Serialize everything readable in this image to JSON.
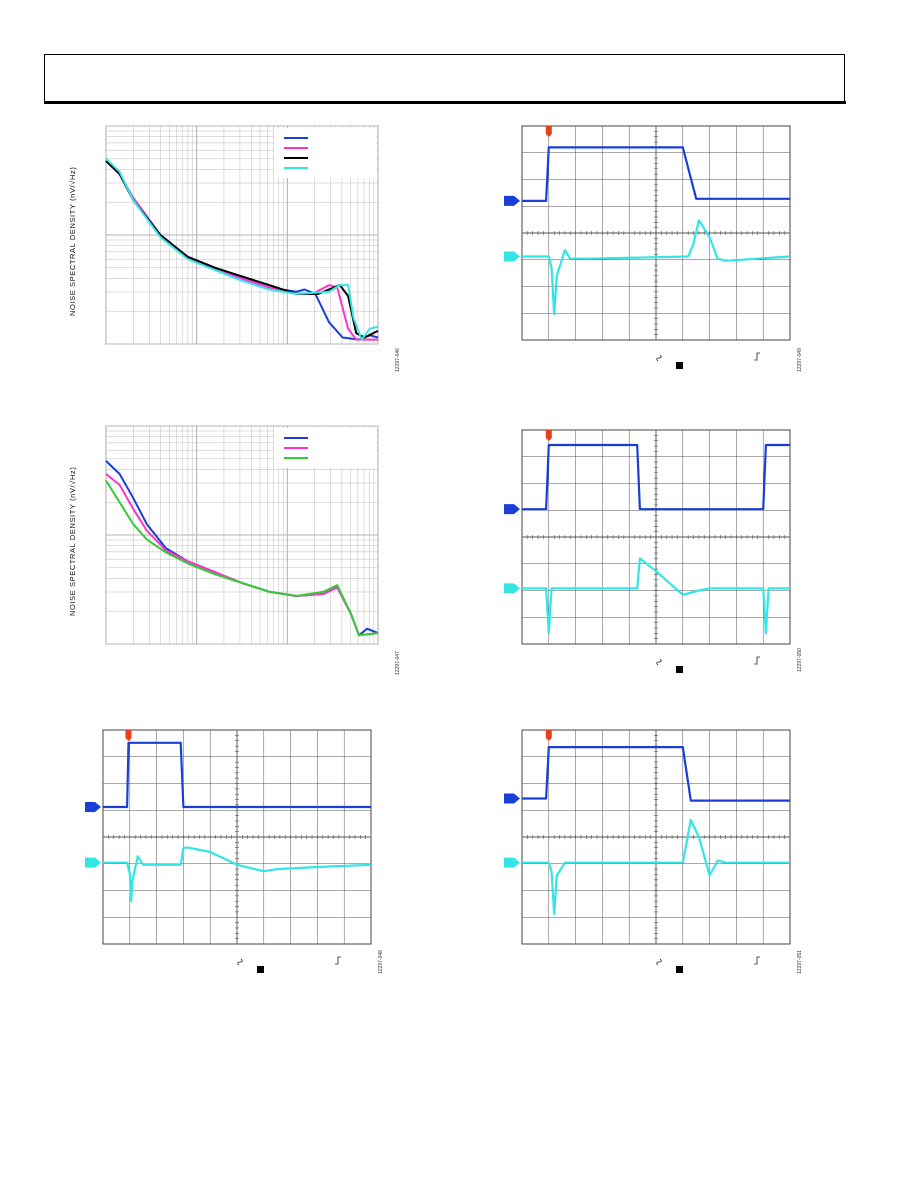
{
  "header": {
    "text": ""
  },
  "colors": {
    "blue": "#1a3fd6",
    "magenta": "#ff33cc",
    "black": "#000000",
    "cyan": "#33e5e5",
    "green": "#33cc33",
    "trigger": "#e8401c",
    "grid": "#b5b5b5",
    "scope_grid": "#555555"
  },
  "figures": [
    {
      "id": "noise1",
      "type": "noise",
      "ylabel": "NOISE SPECTRAL DENSITY (nV/√Hz)",
      "fig_id": "12297-046",
      "legend_colors": [
        "#1a3fd6",
        "#ff33cc",
        "#000000",
        "#33e5e5"
      ]
    },
    {
      "id": "noise2",
      "type": "noise",
      "ylabel": "NOISE SPECTRAL DENSITY (nV/√Hz)",
      "fig_id": "12297-047",
      "legend_colors": [
        "#1a3fd6",
        "#ff33cc",
        "#33cc33"
      ]
    },
    {
      "id": "scope1",
      "type": "scope",
      "fig_id": "12297-048"
    },
    {
      "id": "scope2",
      "type": "scope",
      "fig_id": "12297-049"
    },
    {
      "id": "scope3",
      "type": "scope",
      "fig_id": "12297-050"
    },
    {
      "id": "scope4",
      "type": "scope",
      "fig_id": "12297-051"
    }
  ],
  "chart_data": [
    {
      "type": "line",
      "title": "",
      "xlabel": "",
      "ylabel": "NOISE SPECTRAL DENSITY (nV/√Hz)",
      "log_x": true,
      "log_y": true,
      "grid": true,
      "legend_placement": "top-right",
      "series": [
        {
          "color": "#1a3fd6",
          "points": [
            [
              0,
              0.16
            ],
            [
              0.05,
              0.22
            ],
            [
              0.1,
              0.33
            ],
            [
              0.2,
              0.5
            ],
            [
              0.3,
              0.6
            ],
            [
              0.4,
              0.65
            ],
            [
              0.5,
              0.7
            ],
            [
              0.6,
              0.74
            ],
            [
              0.7,
              0.76
            ],
            [
              0.73,
              0.75
            ],
            [
              0.77,
              0.77
            ],
            [
              0.82,
              0.9
            ],
            [
              0.87,
              0.97
            ],
            [
              0.93,
              0.98
            ],
            [
              0.97,
              0.96
            ],
            [
              1,
              0.97
            ]
          ]
        },
        {
          "color": "#ff33cc",
          "points": [
            [
              0,
              0.16
            ],
            [
              0.05,
              0.22
            ],
            [
              0.1,
              0.33
            ],
            [
              0.2,
              0.5
            ],
            [
              0.3,
              0.6
            ],
            [
              0.4,
              0.65
            ],
            [
              0.5,
              0.7
            ],
            [
              0.6,
              0.74
            ],
            [
              0.7,
              0.77
            ],
            [
              0.76,
              0.77
            ],
            [
              0.82,
              0.73
            ],
            [
              0.85,
              0.74
            ],
            [
              0.89,
              0.93
            ],
            [
              0.92,
              0.98
            ],
            [
              1,
              0.98
            ]
          ]
        },
        {
          "color": "#000000",
          "points": [
            [
              0,
              0.16
            ],
            [
              0.05,
              0.22
            ],
            [
              0.1,
              0.34
            ],
            [
              0.2,
              0.5
            ],
            [
              0.3,
              0.6
            ],
            [
              0.4,
              0.65
            ],
            [
              0.5,
              0.69
            ],
            [
              0.6,
              0.73
            ],
            [
              0.7,
              0.77
            ],
            [
              0.78,
              0.77
            ],
            [
              0.86,
              0.73
            ],
            [
              0.89,
              0.78
            ],
            [
              0.92,
              0.95
            ],
            [
              0.95,
              0.97
            ],
            [
              1,
              0.94
            ]
          ]
        },
        {
          "color": "#33e5e5",
          "points": [
            [
              0,
              0.15
            ],
            [
              0.05,
              0.21
            ],
            [
              0.1,
              0.34
            ],
            [
              0.2,
              0.51
            ],
            [
              0.3,
              0.61
            ],
            [
              0.4,
              0.66
            ],
            [
              0.5,
              0.71
            ],
            [
              0.6,
              0.75
            ],
            [
              0.7,
              0.77
            ],
            [
              0.82,
              0.76
            ],
            [
              0.86,
              0.73
            ],
            [
              0.89,
              0.73
            ],
            [
              0.91,
              0.88
            ],
            [
              0.94,
              0.98
            ],
            [
              0.97,
              0.93
            ],
            [
              1,
              0.92
            ]
          ]
        }
      ]
    },
    {
      "type": "line",
      "title": "",
      "xlabel": "",
      "ylabel": "NOISE SPECTRAL DENSITY (nV/√Hz)",
      "log_x": true,
      "log_y": true,
      "grid": true,
      "legend_placement": "top-right",
      "series": [
        {
          "color": "#1a3fd6",
          "points": [
            [
              0,
              0.16
            ],
            [
              0.05,
              0.22
            ],
            [
              0.1,
              0.33
            ],
            [
              0.15,
              0.45
            ],
            [
              0.22,
              0.56
            ],
            [
              0.3,
              0.62
            ],
            [
              0.4,
              0.67
            ],
            [
              0.5,
              0.72
            ],
            [
              0.6,
              0.76
            ],
            [
              0.7,
              0.78
            ],
            [
              0.8,
              0.77
            ],
            [
              0.85,
              0.74
            ],
            [
              0.9,
              0.86
            ],
            [
              0.93,
              0.96
            ],
            [
              0.96,
              0.93
            ],
            [
              1,
              0.95
            ]
          ]
        },
        {
          "color": "#ff33cc",
          "points": [
            [
              0,
              0.22
            ],
            [
              0.05,
              0.27
            ],
            [
              0.1,
              0.38
            ],
            [
              0.15,
              0.48
            ],
            [
              0.22,
              0.57
            ],
            [
              0.3,
              0.62
            ],
            [
              0.4,
              0.67
            ],
            [
              0.5,
              0.72
            ],
            [
              0.6,
              0.76
            ],
            [
              0.7,
              0.78
            ],
            [
              0.8,
              0.77
            ],
            [
              0.85,
              0.74
            ],
            [
              0.9,
              0.86
            ],
            [
              0.93,
              0.96
            ],
            [
              1,
              0.95
            ]
          ]
        },
        {
          "color": "#33cc33",
          "points": [
            [
              0,
              0.25
            ],
            [
              0.05,
              0.35
            ],
            [
              0.1,
              0.45
            ],
            [
              0.15,
              0.52
            ],
            [
              0.22,
              0.58
            ],
            [
              0.3,
              0.63
            ],
            [
              0.4,
              0.68
            ],
            [
              0.5,
              0.72
            ],
            [
              0.6,
              0.76
            ],
            [
              0.7,
              0.78
            ],
            [
              0.8,
              0.76
            ],
            [
              0.85,
              0.73
            ],
            [
              0.9,
              0.86
            ],
            [
              0.93,
              0.96
            ],
            [
              1,
              0.95
            ]
          ]
        }
      ]
    },
    {
      "type": "line",
      "title": "",
      "xlabel": "",
      "ylabel": "",
      "grid": true,
      "legend_placement": "none",
      "series": [
        {
          "color": "#1a3fd6",
          "points": [
            [
              0,
              0.36
            ],
            [
              0.09,
              0.36
            ],
            [
              0.095,
              0.06
            ],
            [
              0.29,
              0.06
            ],
            [
              0.3,
              0.36
            ],
            [
              1,
              0.36
            ]
          ]
        },
        {
          "color": "#33e5e5",
          "points": [
            [
              0,
              0.62
            ],
            [
              0.09,
              0.62
            ],
            [
              0.1,
              0.67
            ],
            [
              0.105,
              0.8
            ],
            [
              0.11,
              0.7
            ],
            [
              0.13,
              0.59
            ],
            [
              0.15,
              0.63
            ],
            [
              0.2,
              0.63
            ],
            [
              0.29,
              0.63
            ],
            [
              0.3,
              0.55
            ],
            [
              0.32,
              0.55
            ],
            [
              0.4,
              0.57
            ],
            [
              0.5,
              0.63
            ],
            [
              0.6,
              0.66
            ],
            [
              0.65,
              0.65
            ],
            [
              0.8,
              0.64
            ],
            [
              1,
              0.63
            ]
          ]
        }
      ]
    },
    {
      "type": "line",
      "title": "",
      "xlabel": "",
      "ylabel": "",
      "grid": true,
      "legend_placement": "none",
      "series": [
        {
          "color": "#1a3fd6",
          "points": [
            [
              0,
              0.35
            ],
            [
              0.09,
              0.35
            ],
            [
              0.1,
              0.1
            ],
            [
              0.6,
              0.1
            ],
            [
              0.65,
              0.34
            ],
            [
              1,
              0.34
            ]
          ]
        },
        {
          "color": "#33e5e5",
          "points": [
            [
              0,
              0.61
            ],
            [
              0.1,
              0.61
            ],
            [
              0.11,
              0.66
            ],
            [
              0.12,
              0.88
            ],
            [
              0.13,
              0.7
            ],
            [
              0.16,
              0.58
            ],
            [
              0.18,
              0.62
            ],
            [
              0.25,
              0.62
            ],
            [
              0.62,
              0.61
            ],
            [
              0.64,
              0.55
            ],
            [
              0.66,
              0.44
            ],
            [
              0.7,
              0.52
            ],
            [
              0.73,
              0.62
            ],
            [
              0.76,
              0.63
            ],
            [
              1,
              0.61
            ]
          ]
        }
      ]
    },
    {
      "type": "line",
      "title": "",
      "xlabel": "",
      "ylabel": "",
      "grid": true,
      "legend_placement": "none",
      "series": [
        {
          "color": "#1a3fd6",
          "points": [
            [
              0,
              0.37
            ],
            [
              0.09,
              0.37
            ],
            [
              0.1,
              0.07
            ],
            [
              0.43,
              0.07
            ],
            [
              0.44,
              0.37
            ],
            [
              0.9,
              0.37
            ],
            [
              0.91,
              0.07
            ],
            [
              1,
              0.07
            ]
          ]
        },
        {
          "color": "#33e5e5",
          "points": [
            [
              0,
              0.74
            ],
            [
              0.09,
              0.74
            ],
            [
              0.1,
              0.95
            ],
            [
              0.11,
              0.74
            ],
            [
              0.43,
              0.74
            ],
            [
              0.44,
              0.6
            ],
            [
              0.5,
              0.66
            ],
            [
              0.6,
              0.77
            ],
            [
              0.66,
              0.75
            ],
            [
              0.7,
              0.74
            ],
            [
              0.9,
              0.74
            ],
            [
              0.91,
              0.95
            ],
            [
              0.92,
              0.74
            ],
            [
              1,
              0.74
            ]
          ]
        }
      ]
    },
    {
      "type": "line",
      "title": "",
      "xlabel": "",
      "ylabel": "",
      "grid": true,
      "legend_placement": "none",
      "series": [
        {
          "color": "#1a3fd6",
          "points": [
            [
              0,
              0.32
            ],
            [
              0.09,
              0.32
            ],
            [
              0.1,
              0.08
            ],
            [
              0.6,
              0.08
            ],
            [
              0.63,
              0.33
            ],
            [
              1,
              0.33
            ]
          ]
        },
        {
          "color": "#33e5e5",
          "points": [
            [
              0,
              0.62
            ],
            [
              0.1,
              0.62
            ],
            [
              0.11,
              0.66
            ],
            [
              0.12,
              0.86
            ],
            [
              0.13,
              0.68
            ],
            [
              0.16,
              0.62
            ],
            [
              0.2,
              0.62
            ],
            [
              0.6,
              0.62
            ],
            [
              0.63,
              0.42
            ],
            [
              0.66,
              0.5
            ],
            [
              0.7,
              0.68
            ],
            [
              0.73,
              0.61
            ],
            [
              0.76,
              0.62
            ],
            [
              1,
              0.62
            ]
          ]
        }
      ]
    }
  ]
}
